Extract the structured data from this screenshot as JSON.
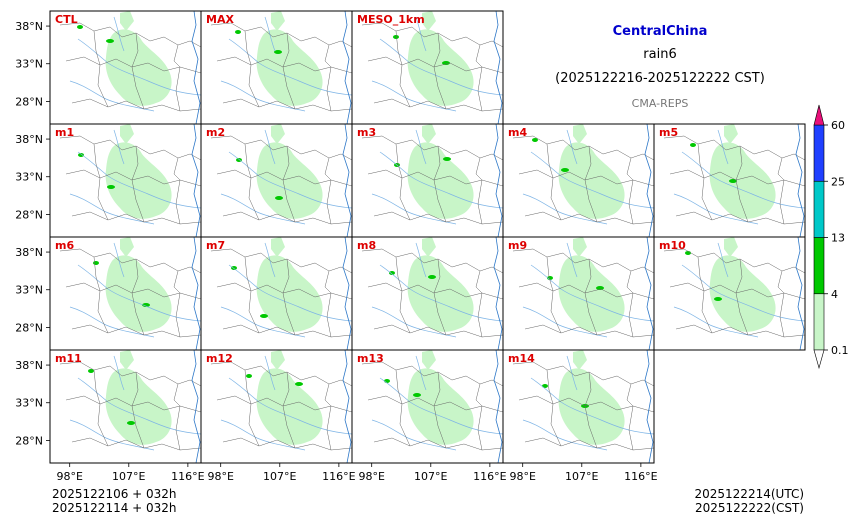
{
  "chart_data": {
    "type": "heatmap",
    "title": "CentralChina",
    "product": "rain6",
    "period": "(2025122216-2025122222 CST)",
    "source": "CMA-REPS",
    "panels": [
      {
        "name": "CTL",
        "row": 0,
        "col": 0
      },
      {
        "name": "MAX",
        "row": 0,
        "col": 1
      },
      {
        "name": "MESO_1km",
        "row": 0,
        "col": 2
      },
      {
        "name": "m1",
        "row": 1,
        "col": 0
      },
      {
        "name": "m2",
        "row": 1,
        "col": 1
      },
      {
        "name": "m3",
        "row": 1,
        "col": 2
      },
      {
        "name": "m4",
        "row": 1,
        "col": 3
      },
      {
        "name": "m5",
        "row": 1,
        "col": 4
      },
      {
        "name": "m6",
        "row": 2,
        "col": 0
      },
      {
        "name": "m7",
        "row": 2,
        "col": 1
      },
      {
        "name": "m8",
        "row": 2,
        "col": 2
      },
      {
        "name": "m9",
        "row": 2,
        "col": 3
      },
      {
        "name": "m10",
        "row": 2,
        "col": 4
      },
      {
        "name": "m11",
        "row": 3,
        "col": 0
      },
      {
        "name": "m12",
        "row": 3,
        "col": 1
      },
      {
        "name": "m13",
        "row": 3,
        "col": 2
      },
      {
        "name": "m14",
        "row": 3,
        "col": 3
      }
    ],
    "lat_ticks": [
      "38°N",
      "33°N",
      "28°N"
    ],
    "lat_values": [
      38,
      33,
      28
    ],
    "lon_ticks": [
      "98°E",
      "107°E",
      "116°E"
    ],
    "lon_values": [
      98,
      107,
      116
    ],
    "lon_range": [
      95,
      118
    ],
    "lat_range": [
      25,
      40
    ],
    "colorbar": {
      "levels": [
        "0.1",
        "4",
        "13",
        "25",
        "60"
      ],
      "colors": [
        "#c8f5c8",
        "#00c800",
        "#00c8c8",
        "#2040ff",
        "#e8107a"
      ],
      "under_color": "#ffffff"
    },
    "init_line1": "2025122106  +  032h",
    "init_line2": "2025122114  +  032h",
    "valid_utc": "2025122214(UTC)",
    "valid_cst": "2025122222(CST)",
    "colors": {
      "label": "#dd0000",
      "title": "#0000cc",
      "source": "#777777"
    }
  }
}
